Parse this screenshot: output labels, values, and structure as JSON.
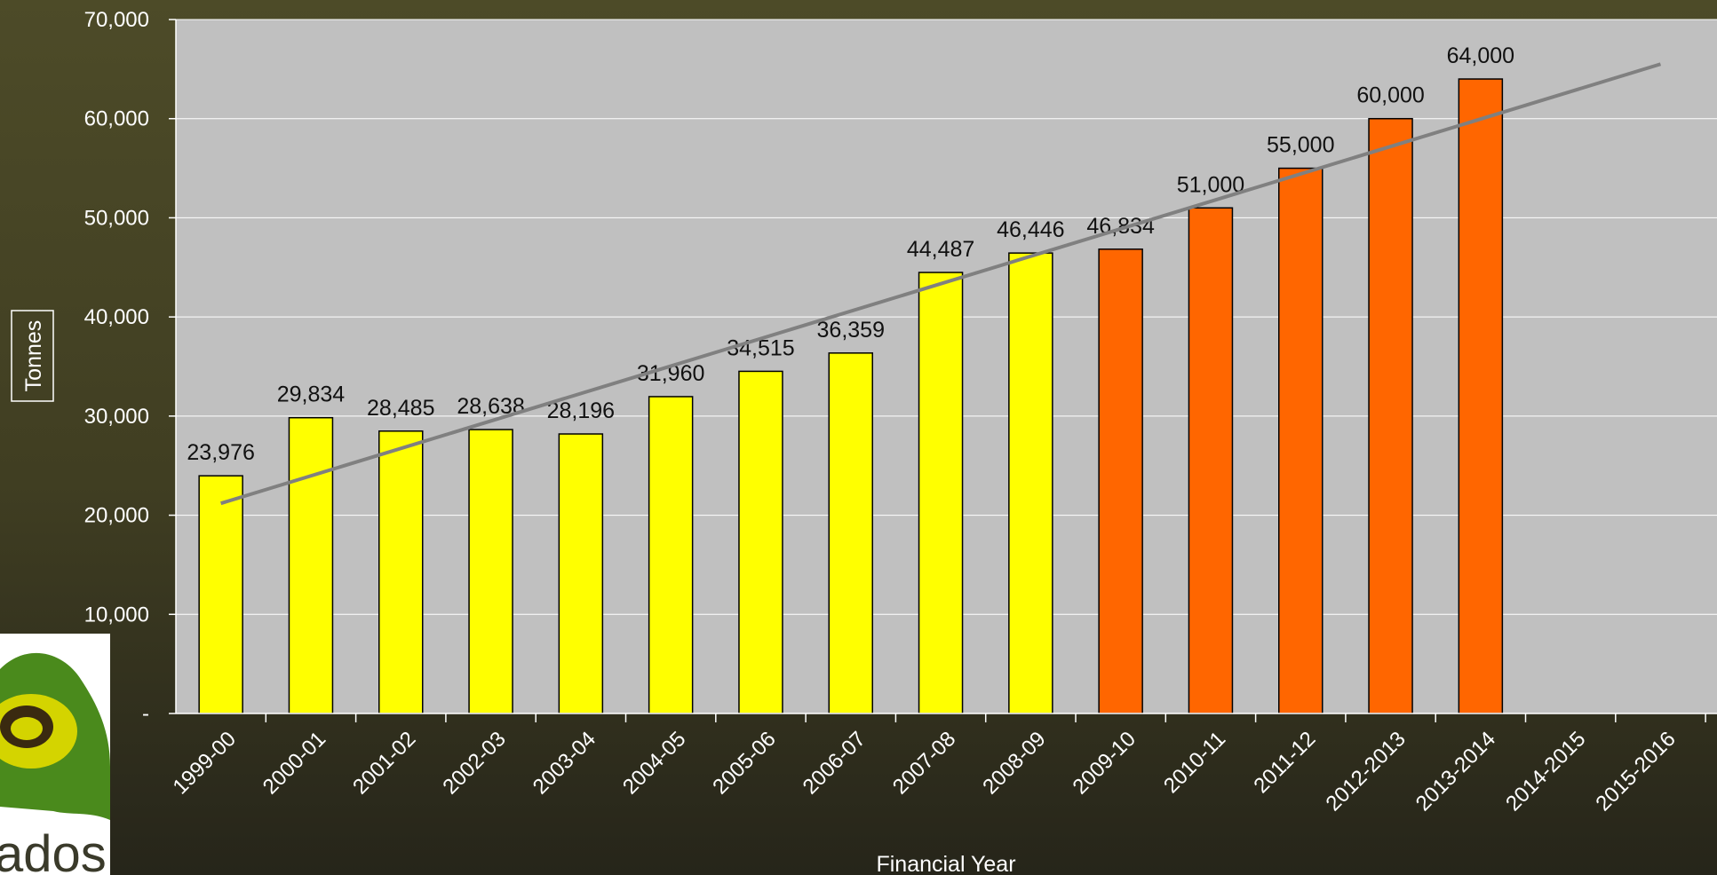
{
  "chart_data": {
    "type": "bar",
    "categories": [
      "1999-00",
      "2000-01",
      "2001-02",
      "2002-03",
      "2003-04",
      "2004-05",
      "2005-06",
      "2006-07",
      "2007-08",
      "2008-09",
      "2009-10",
      "2010-11",
      "2011-12",
      "2012-2013",
      "2013-2014",
      "2014-2015",
      "2015-2016"
    ],
    "values": [
      23976,
      29834,
      28485,
      28638,
      28196,
      31960,
      34515,
      36359,
      44487,
      46446,
      46834,
      51000,
      55000,
      60000,
      64000,
      null,
      null
    ],
    "data_labels": [
      "23,976",
      "29,834",
      "28,485",
      "28,638",
      "28,196",
      "31,960",
      "34,515",
      "36,359",
      "44,487",
      "46,446",
      "46,834",
      "51,000",
      "55,000",
      "60,000",
      "64,000",
      "",
      ""
    ],
    "bar_colors": [
      "#ffff00",
      "#ffff00",
      "#ffff00",
      "#ffff00",
      "#ffff00",
      "#ffff00",
      "#ffff00",
      "#ffff00",
      "#ffff00",
      "#ffff00",
      "#ff6600",
      "#ff6600",
      "#ff6600",
      "#ff6600",
      "#ff6600",
      "#ff6600",
      "#ff6600"
    ],
    "trendline": {
      "type": "linear",
      "start": {
        "category": "1999-00",
        "value": 21200
      },
      "end": {
        "category": "2015-2016",
        "value": 65500
      },
      "color": "#808080"
    },
    "title": "",
    "xlabel": "Financial Year",
    "ylabel": "Tonnes",
    "ylim": [
      0,
      70000
    ],
    "yticks": [
      0,
      10000,
      20000,
      30000,
      40000,
      50000,
      60000,
      70000
    ],
    "ytick_labels": [
      "-",
      "10,000",
      "20,000",
      "30,000",
      "40,000",
      "50,000",
      "60,000",
      "70,000"
    ],
    "grid": true,
    "legend": "none",
    "plot_background": "#c0c0c0"
  },
  "logo": {
    "text": "ados",
    "name": "logo"
  }
}
